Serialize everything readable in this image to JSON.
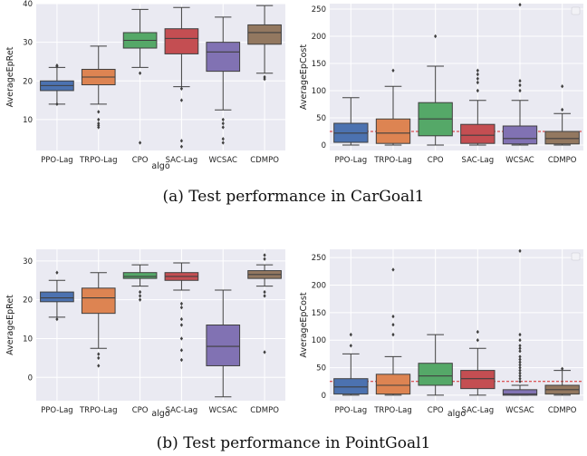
{
  "captions": [
    "(a) Test performance in CarGoal1",
    "(b) Test performance in PointGoal1"
  ],
  "colors": {
    "panel_bg": "#eaeaf2",
    "grid": "#ffffff",
    "threshold": "#d62728",
    "boxes": [
      "#4c72b0",
      "#dd8452",
      "#55a868",
      "#c44e52",
      "#8172b3",
      "#937860"
    ]
  },
  "chart_data": [
    {
      "type": "box",
      "xlabel": "algo",
      "ylabel": "AverageEpRet",
      "ylim": [
        2,
        40
      ],
      "yticks": [
        10,
        20,
        30,
        40
      ],
      "grid": true,
      "categories": [
        "PPO-Lag",
        "TRPO-Lag",
        "CPO",
        "SAC-Lag",
        "WCSAC",
        "CDMPO"
      ],
      "boxes": [
        {
          "whislo": 14,
          "q1": 17.5,
          "med": 18.8,
          "q3": 20,
          "whishi": 23.5,
          "fliers": [
            14,
            24,
            23.8
          ]
        },
        {
          "whislo": 14,
          "q1": 19,
          "med": 21,
          "q3": 23,
          "whishi": 29,
          "fliers": [
            12,
            10,
            9,
            8.5,
            8
          ]
        },
        {
          "whislo": 23.5,
          "q1": 28.5,
          "med": 30.5,
          "q3": 32.5,
          "whishi": 38.5,
          "fliers": [
            22,
            4
          ]
        },
        {
          "whislo": 18.5,
          "q1": 27,
          "med": 31,
          "q3": 33.5,
          "whishi": 39,
          "fliers": [
            18,
            15,
            4.5,
            3
          ]
        },
        {
          "whislo": 12.5,
          "q1": 22.5,
          "med": 27.5,
          "q3": 30,
          "whishi": 36.5,
          "fliers": [
            10,
            9,
            8,
            5,
            4
          ]
        },
        {
          "whislo": 22,
          "q1": 29.5,
          "med": 32.5,
          "q3": 34.5,
          "whishi": 39.5,
          "fliers": [
            21,
            20.5
          ]
        }
      ]
    },
    {
      "type": "box",
      "xlabel": "",
      "ylabel": "AverageEpCost",
      "ylim": [
        -10,
        260
      ],
      "yticks": [
        0,
        50,
        100,
        150,
        200,
        250
      ],
      "grid": true,
      "threshold": 25,
      "legend": "top-right",
      "categories": [
        "PPO-Lag",
        "TRPO-Lag",
        "CPO",
        "SAC-Lag",
        "WCSAC",
        "CDMPO"
      ],
      "boxes": [
        {
          "whislo": 0,
          "q1": 5,
          "med": 22,
          "q3": 40,
          "whishi": 87,
          "fliers": []
        },
        {
          "whislo": 0,
          "q1": 3,
          "med": 22,
          "q3": 48,
          "whishi": 108,
          "fliers": [
            137
          ]
        },
        {
          "whislo": 0,
          "q1": 17,
          "med": 48,
          "q3": 78,
          "whishi": 145,
          "fliers": [
            200
          ]
        },
        {
          "whislo": 0,
          "q1": 3,
          "med": 18,
          "q3": 38,
          "whishi": 82,
          "fliers": [
            100,
            115,
            122,
            130,
            137
          ]
        },
        {
          "whislo": 0,
          "q1": 2,
          "med": 12,
          "q3": 35,
          "whishi": 82,
          "fliers": [
            100,
            110,
            118,
            258
          ]
        },
        {
          "whislo": 0,
          "q1": 2,
          "med": 12,
          "q3": 25,
          "whishi": 58,
          "fliers": [
            65,
            108
          ]
        }
      ]
    },
    {
      "type": "box",
      "xlabel": "algo",
      "ylabel": "AverageEpRet",
      "ylim": [
        -6,
        33
      ],
      "yticks": [
        0,
        10,
        20,
        30
      ],
      "grid": true,
      "categories": [
        "PPO-Lag",
        "TRPO-Lag",
        "CPO",
        "SAC-Lag",
        "WCSAC",
        "CDMPO"
      ],
      "boxes": [
        {
          "whislo": 15.5,
          "q1": 19.5,
          "med": 20.5,
          "q3": 22,
          "whishi": 25,
          "fliers": [
            15,
            27
          ]
        },
        {
          "whislo": 7.5,
          "q1": 16.5,
          "med": 20.5,
          "q3": 23,
          "whishi": 27,
          "fliers": [
            6,
            5,
            3
          ]
        },
        {
          "whislo": 23.5,
          "q1": 25.5,
          "med": 26,
          "q3": 27,
          "whishi": 29,
          "fliers": [
            22,
            21,
            20
          ]
        },
        {
          "whislo": 22.5,
          "q1": 25,
          "med": 26,
          "q3": 27,
          "whishi": 29.5,
          "fliers": [
            19,
            18,
            15,
            13.5,
            10,
            7,
            4.5
          ]
        },
        {
          "whislo": -5,
          "q1": 3,
          "med": 8,
          "q3": 13.5,
          "whishi": 22.5,
          "fliers": []
        },
        {
          "whislo": 23.5,
          "q1": 25.5,
          "med": 26.5,
          "q3": 27.5,
          "whishi": 29,
          "fliers": [
            31.5,
            30.5,
            22,
            21,
            6.5
          ]
        }
      ]
    },
    {
      "type": "box",
      "xlabel": "algo",
      "ylabel": "AverageEpCost",
      "ylim": [
        -10,
        265
      ],
      "yticks": [
        0,
        50,
        100,
        150,
        200,
        250
      ],
      "grid": true,
      "threshold": 25,
      "legend": "top-right",
      "categories": [
        "PPO-Lag",
        "TRPO-Lag",
        "CPO",
        "SAC-Lag",
        "WCSAC",
        "CDMPO"
      ],
      "boxes": [
        {
          "whislo": 0,
          "q1": 2,
          "med": 15,
          "q3": 30,
          "whishi": 75,
          "fliers": [
            90,
            110
          ]
        },
        {
          "whislo": 0,
          "q1": 2,
          "med": 18,
          "q3": 38,
          "whishi": 70,
          "fliers": [
            110,
            128,
            143,
            228
          ]
        },
        {
          "whislo": 0,
          "q1": 18,
          "med": 35,
          "q3": 58,
          "whishi": 110,
          "fliers": []
        },
        {
          "whislo": 0,
          "q1": 12,
          "med": 30,
          "q3": 45,
          "whishi": 85,
          "fliers": [
            100,
            115
          ]
        },
        {
          "whislo": 0,
          "q1": 0,
          "med": 2,
          "q3": 10,
          "whishi": 18,
          "fliers": [
            25,
            30,
            35,
            40,
            45,
            50,
            55,
            60,
            65,
            70,
            80,
            85,
            90,
            100,
            110,
            262
          ]
        },
        {
          "whislo": 0,
          "q1": 2,
          "med": 10,
          "q3": 18,
          "whishi": 45,
          "fliers": [
            48
          ]
        }
      ]
    }
  ]
}
